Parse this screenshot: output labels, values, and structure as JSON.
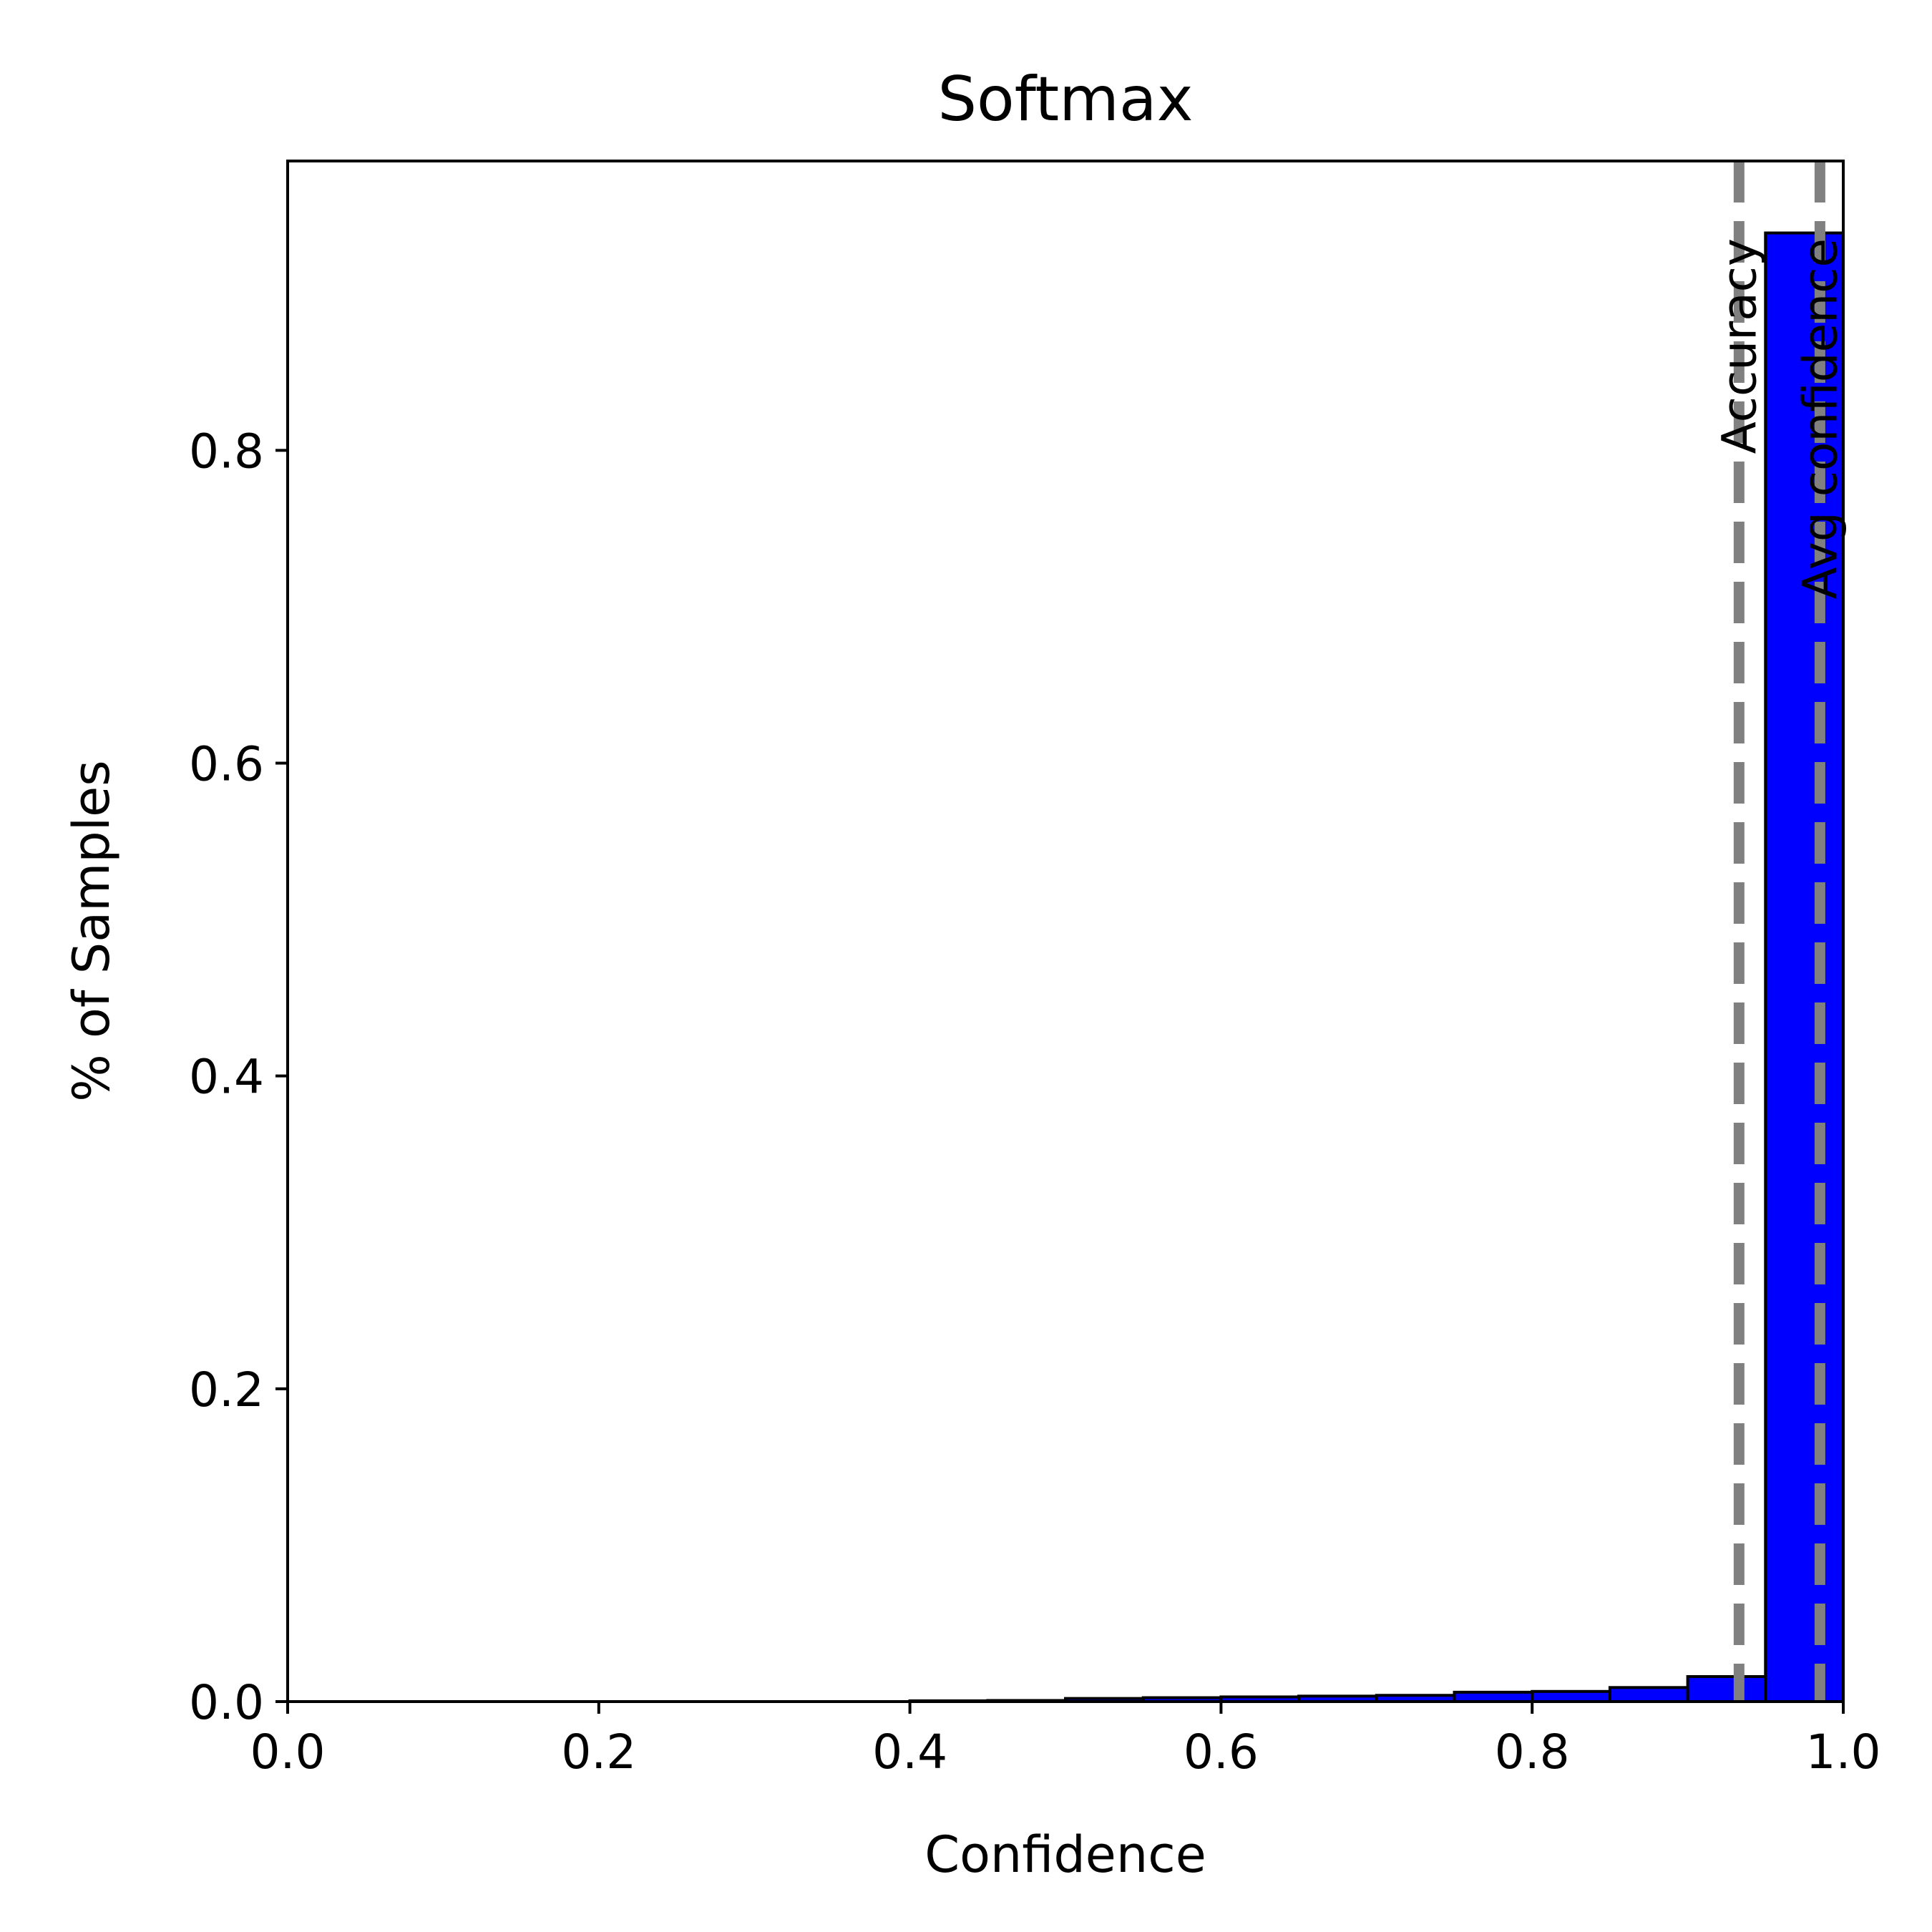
{
  "chart_data": {
    "type": "bar",
    "title": "Softmax",
    "xlabel": "Confidence",
    "ylabel": "% of Samples",
    "xlim": [
      0,
      1
    ],
    "ylim": [
      0,
      0.985
    ],
    "xticks": [
      "0.0",
      "0.2",
      "0.4",
      "0.6",
      "0.8",
      "1.0"
    ],
    "yticks": [
      "0.0",
      "0.2",
      "0.4",
      "0.6",
      "0.8"
    ],
    "grid": false,
    "bin_width": 0.05,
    "bins": [
      0.0,
      0.05,
      0.1,
      0.15,
      0.2,
      0.25,
      0.3,
      0.35,
      0.4,
      0.45,
      0.5,
      0.55,
      0.6,
      0.65,
      0.7,
      0.75,
      0.8,
      0.85,
      0.9,
      0.95
    ],
    "values": [
      0,
      0,
      0,
      0,
      0,
      0,
      0,
      0,
      0.0005,
      0.0007,
      0.002,
      0.0025,
      0.003,
      0.0035,
      0.004,
      0.006,
      0.0065,
      0.009,
      0.016,
      0.939
    ],
    "bar_color": "#0000ff",
    "edge_color": "#000000",
    "reference_lines": [
      {
        "label": "Accuracy",
        "x": 0.933,
        "color": "#808080",
        "style": "dashed"
      },
      {
        "label": "Avg confidence",
        "x": 0.985,
        "color": "#808080",
        "style": "dashed"
      }
    ]
  }
}
